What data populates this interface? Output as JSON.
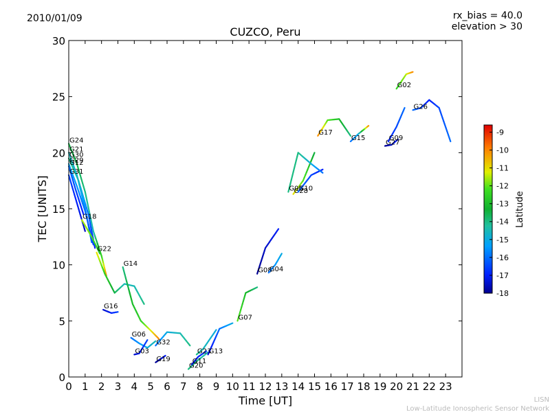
{
  "header": {
    "date": "2010/01/09",
    "rx_bias": "rx_bias = 40.0",
    "elevation": "elevation > 30"
  },
  "footer": {
    "line1": "LISN",
    "line2": "Low-Latitude Ionospheric Sensor Network"
  },
  "chart_data": {
    "type": "scatter",
    "title": "CUZCO, Peru",
    "xlabel": "Time [UT]",
    "ylabel": "TEC [UNITS]",
    "xlim": [
      0,
      24
    ],
    "ylim": [
      0,
      30
    ],
    "xticks": [
      "0",
      "1",
      "2",
      "3",
      "4",
      "5",
      "6",
      "7",
      "8",
      "9",
      "10",
      "11",
      "12",
      "13",
      "14",
      "15",
      "16",
      "17",
      "18",
      "19",
      "20",
      "21",
      "22",
      "23"
    ],
    "yticks": [
      "0",
      "5",
      "10",
      "15",
      "20",
      "25",
      "30"
    ],
    "grid": false,
    "colorbar": {
      "label": "Latitude",
      "min": -18,
      "max": -8.6,
      "ticks": [
        "-9",
        "-10",
        "-11",
        "-12",
        "-13",
        "-14",
        "-15",
        "-16",
        "-17",
        "-18"
      ],
      "tick_values": [
        -9,
        -10,
        -11,
        -12,
        -13,
        -14,
        -15,
        -16,
        -17,
        -18
      ]
    },
    "series": [
      {
        "name": "G24",
        "points": [
          [
            0,
            20.8
          ],
          [
            0.5,
            19
          ],
          [
            1,
            16.5
          ],
          [
            1.5,
            13
          ],
          [
            2,
            10.8
          ],
          [
            2.3,
            9
          ]
        ],
        "lat": [
          -13.5,
          -13.5,
          -14,
          -14.5,
          -12.5,
          -10
        ]
      },
      {
        "name": "G21",
        "points": [
          [
            0,
            20
          ],
          [
            0.5,
            18
          ],
          [
            1,
            15
          ],
          [
            1.4,
            12
          ]
        ],
        "lat": [
          -14.5,
          -15,
          -15.5,
          -16
        ]
      },
      {
        "name": "G30",
        "points": [
          [
            0,
            19.5
          ],
          [
            0.6,
            17.5
          ],
          [
            1.2,
            14.5
          ],
          [
            1.6,
            11.5
          ]
        ],
        "lat": [
          -14,
          -14.5,
          -16,
          -17
        ]
      },
      {
        "name": "G29",
        "points": [
          [
            0,
            19
          ],
          [
            0.5,
            17
          ],
          [
            1,
            14.8
          ],
          [
            1.5,
            11.8
          ]
        ],
        "lat": [
          -15,
          -15.5,
          -16,
          -16.5
        ]
      },
      {
        "name": "G12",
        "points": [
          [
            0,
            18.8
          ],
          [
            0.4,
            16.8
          ],
          [
            0.9,
            14.5
          ]
        ],
        "lat": [
          -16,
          -16.5,
          -17
        ]
      },
      {
        "name": "G31",
        "points": [
          [
            0,
            18
          ],
          [
            0.5,
            15.5
          ],
          [
            1,
            13
          ]
        ],
        "lat": [
          -16.5,
          -17,
          -17.5
        ]
      },
      {
        "name": "G18",
        "points": [
          [
            0.8,
            14
          ],
          [
            1.4,
            12.5
          ],
          [
            1.9,
            11
          ]
        ],
        "lat": [
          -11.5,
          -12,
          -13
        ]
      },
      {
        "name": "G22",
        "points": [
          [
            1.7,
            11.1
          ],
          [
            2.2,
            9.2
          ],
          [
            2.8,
            7.5
          ],
          [
            3.4,
            8.3
          ],
          [
            4,
            8.1
          ],
          [
            4.6,
            6.5
          ]
        ],
        "lat": [
          -11,
          -12.5,
          -13.5,
          -14.5,
          -14.5,
          -14
        ]
      },
      {
        "name": "G16",
        "points": [
          [
            2.1,
            6
          ],
          [
            2.6,
            5.7
          ],
          [
            3,
            5.8
          ]
        ],
        "lat": [
          -17.5,
          -17,
          -16.5
        ]
      },
      {
        "name": "G06",
        "points": [
          [
            3.8,
            3.5
          ],
          [
            4.3,
            3
          ],
          [
            4.8,
            2.6
          ],
          [
            5.3,
            3.2
          ]
        ],
        "lat": [
          -16,
          -15.5,
          -15,
          -14.5
        ]
      },
      {
        "name": "G14",
        "points": [
          [
            3.3,
            9.8
          ],
          [
            3.9,
            6.5
          ],
          [
            4.4,
            5
          ],
          [
            5.1,
            4
          ],
          [
            5.5,
            3.4
          ]
        ],
        "lat": [
          -14,
          -13,
          -12.5,
          -11,
          -10
        ]
      },
      {
        "name": "G03",
        "points": [
          [
            4,
            2
          ],
          [
            4.3,
            2.1
          ],
          [
            4.8,
            3.3
          ]
        ],
        "lat": [
          -17.5,
          -17,
          -16.5
        ]
      },
      {
        "name": "G32",
        "points": [
          [
            5.3,
            2.8
          ],
          [
            6,
            4
          ],
          [
            6.8,
            3.9
          ],
          [
            7.4,
            2.8
          ]
        ],
        "lat": [
          -16,
          -15,
          -14.5,
          -14
        ]
      },
      {
        "name": "G19",
        "points": [
          [
            5.3,
            1.3
          ],
          [
            5.6,
            1.6
          ],
          [
            5.9,
            1.9
          ]
        ],
        "lat": [
          -18,
          -17.5,
          -17
        ]
      },
      {
        "name": "G20",
        "points": [
          [
            7.3,
            0.7
          ],
          [
            7.8,
            1.4
          ],
          [
            8.5,
            2.2
          ]
        ],
        "lat": [
          -14,
          -14,
          -14.5
        ]
      },
      {
        "name": "G11",
        "points": [
          [
            7.5,
            1.1
          ],
          [
            7.9,
            1.8
          ],
          [
            8.4,
            2.3
          ]
        ],
        "lat": [
          -17.5,
          -17,
          -16.5
        ]
      },
      {
        "name": "G23",
        "points": [
          [
            7.8,
            2
          ],
          [
            8.2,
            2.5
          ],
          [
            9,
            4.2
          ]
        ],
        "lat": [
          -14,
          -14.5,
          -15
        ]
      },
      {
        "name": "G13",
        "points": [
          [
            8.5,
            2
          ],
          [
            9.2,
            4.3
          ],
          [
            10,
            4.8
          ]
        ],
        "lat": [
          -17.5,
          -16,
          -15
        ]
      },
      {
        "name": "G07",
        "points": [
          [
            10.3,
            5
          ],
          [
            10.8,
            7.5
          ],
          [
            11.5,
            8
          ]
        ],
        "lat": [
          -12,
          -13,
          -14
        ]
      },
      {
        "name": "G08",
        "points": [
          [
            11.5,
            9.2
          ],
          [
            12,
            11.5
          ],
          [
            12.8,
            13.2
          ]
        ],
        "lat": [
          -18,
          -17.5,
          -17
        ]
      },
      {
        "name": "G04",
        "points": [
          [
            12.2,
            9.3
          ],
          [
            12.6,
            10
          ],
          [
            13,
            11
          ]
        ],
        "lat": [
          -16,
          -15.5,
          -15
        ]
      },
      {
        "name": "G28",
        "points": [
          [
            13.7,
            16.3
          ],
          [
            14.3,
            17.5
          ],
          [
            15,
            20
          ]
        ],
        "lat": [
          -11,
          -12,
          -13.5
        ]
      },
      {
        "name": "G10",
        "points": [
          [
            14,
            16.5
          ],
          [
            14.8,
            18
          ],
          [
            15.5,
            18.5
          ]
        ],
        "lat": [
          -16,
          -16.5,
          -17
        ]
      },
      {
        "name": "G05",
        "points": [
          [
            13.4,
            16.5
          ],
          [
            14,
            20
          ],
          [
            14.8,
            19
          ],
          [
            15.5,
            18.2
          ]
        ],
        "lat": [
          -14,
          -14,
          -15,
          -16
        ]
      },
      {
        "name": "G17",
        "points": [
          [
            15.2,
            21.5
          ],
          [
            15.8,
            22.9
          ],
          [
            16.5,
            23
          ],
          [
            17.2,
            21.5
          ]
        ],
        "lat": [
          -10,
          -12,
          -13,
          -14
        ]
      },
      {
        "name": "G15",
        "points": [
          [
            17.2,
            21
          ],
          [
            17.7,
            21.7
          ],
          [
            18.3,
            22.4
          ]
        ],
        "lat": [
          -16,
          -15,
          -10
        ]
      },
      {
        "name": "G27",
        "points": [
          [
            19.3,
            20.6
          ],
          [
            19.7,
            20.7
          ],
          [
            20.1,
            21.2
          ]
        ],
        "lat": [
          -18,
          -17.5,
          -17
        ]
      },
      {
        "name": "G09",
        "points": [
          [
            19.5,
            21
          ],
          [
            20,
            22.3
          ],
          [
            20.5,
            24
          ]
        ],
        "lat": [
          -17,
          -16.5,
          -16
        ]
      },
      {
        "name": "G02",
        "points": [
          [
            20,
            25.7
          ],
          [
            20.6,
            27
          ],
          [
            21,
            27.2
          ]
        ],
        "lat": [
          -12.5,
          -11.5,
          -10
        ]
      },
      {
        "name": "G26",
        "points": [
          [
            21,
            23.8
          ],
          [
            21.5,
            24
          ],
          [
            22,
            24.7
          ],
          [
            22.6,
            24
          ],
          [
            23.3,
            21
          ]
        ],
        "lat": [
          -16,
          -16.5,
          -17,
          -16.5,
          -16
        ]
      }
    ]
  }
}
